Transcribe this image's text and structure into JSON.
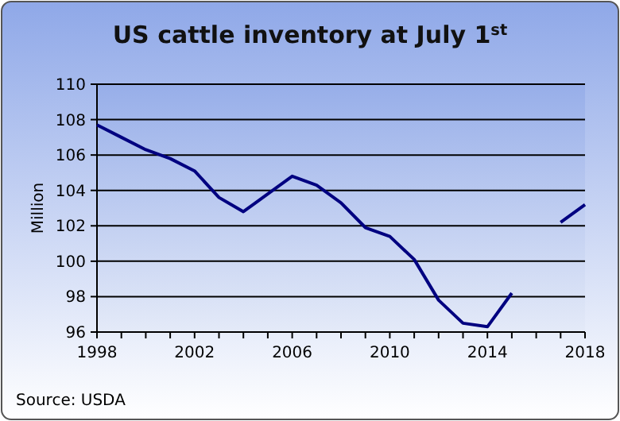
{
  "chart_data": {
    "type": "line",
    "title": "US cattle inventory at July 1$^{st}$",
    "ylabel": "Million",
    "x": [
      1998,
      1999,
      2000,
      2001,
      2002,
      2003,
      2004,
      2005,
      2006,
      2007,
      2008,
      2009,
      2010,
      2011,
      2012,
      2013,
      2014,
      2015,
      2016,
      2017,
      2018
    ],
    "series": [
      {
        "color": "#000080",
        "values": [
          107.7,
          107.0,
          106.3,
          105.8,
          105.1,
          103.6,
          102.8,
          103.8,
          104.8,
          104.3,
          103.3,
          101.9,
          101.4,
          100.1,
          97.8,
          96.5,
          96.3,
          98.2,
          null,
          102.2,
          103.2
        ]
      }
    ],
    "xlim": [
      1998,
      2018
    ],
    "ylim": [
      96,
      110
    ],
    "yticks": [
      96,
      98,
      100,
      102,
      104,
      106,
      108,
      110
    ],
    "xticks": [
      1998,
      {
        "value": 1999,
        "label": null
      },
      {
        "value": 2000,
        "label": null
      },
      {
        "value": 2001,
        "label": null
      },
      2002,
      {
        "value": 2003,
        "label": null
      },
      {
        "value": 2004,
        "label": null
      },
      {
        "value": 2005,
        "label": null
      },
      2006,
      {
        "value": 2007,
        "label": null
      },
      {
        "value": 2008,
        "label": null
      },
      {
        "value": 2009,
        "label": null
      },
      2010,
      {
        "value": 2011,
        "label": null
      },
      {
        "value": 2012,
        "label": null
      },
      {
        "value": 2013,
        "label": null
      },
      2014,
      {
        "value": 2015,
        "label": null
      },
      {
        "value": 2016,
        "label": null
      },
      {
        "value": 2017,
        "label": null
      },
      2018
    ],
    "grid": "y",
    "line_style": "solid",
    "marker": "none",
    "annotations": [
      "Source: USDA"
    ]
  }
}
